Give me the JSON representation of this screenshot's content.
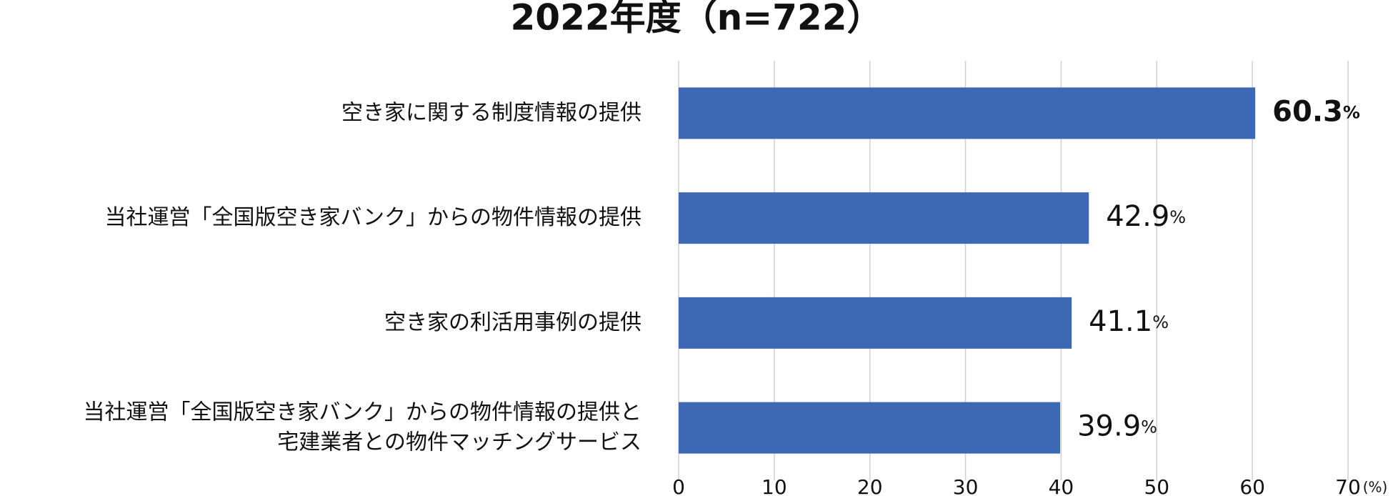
{
  "chart_data": {
    "type": "hbar",
    "title": "2022年度（n=722）",
    "categories": [
      [
        "空き家に関する制度情報の提供"
      ],
      [
        "当社運営「全国版空き家バンク」からの物件情報の提供"
      ],
      [
        "空き家の利活用事例の提供"
      ],
      [
        "当社運営「全国版空き家バンク」からの物件情報の提供と",
        "宅建業者との物件マッチングサービス"
      ]
    ],
    "values": [
      60.3,
      42.9,
      41.1,
      39.9
    ],
    "value_unit": "%",
    "value_label_bold": [
      true,
      false,
      false,
      false
    ],
    "color": "#3c68b4",
    "xlim": [
      0,
      70
    ],
    "xticks": [
      0,
      10,
      20,
      30,
      40,
      50,
      60,
      70
    ],
    "x_unit_label": "(%)",
    "grid": true
  }
}
